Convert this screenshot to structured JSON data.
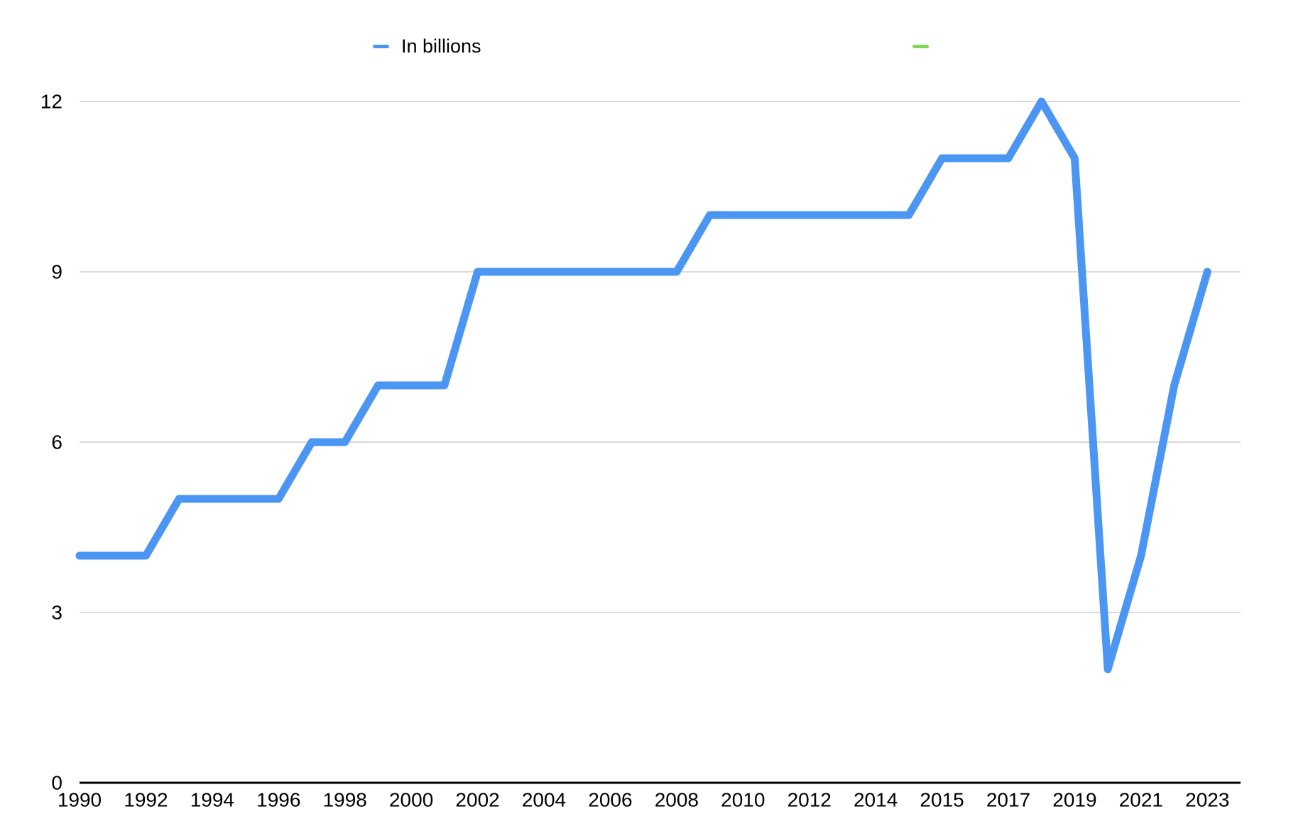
{
  "chart": {
    "background_color": "#ffffff",
    "axis_color": "#000000",
    "gridline_color": "#cdcdcd",
    "tick_label_color": "#000000",
    "legend": {
      "series1": {
        "label": "In billions",
        "color": "#4b96f3"
      },
      "series2": {
        "label": "",
        "color": "#7fd653"
      }
    },
    "chart_data": {
      "type": "line",
      "title": "",
      "xlabel": "",
      "ylabel": "",
      "grid": "horizontal",
      "legend_position": "top",
      "y_ticks": [
        0,
        3,
        6,
        9,
        12
      ],
      "ylim": [
        0,
        12.3
      ],
      "x_tick_labels": [
        "1990",
        "1992",
        "1994",
        "1996",
        "1998",
        "2000",
        "2002",
        "2004",
        "2006",
        "2008",
        "2010",
        "2012",
        "2014",
        "2015",
        "2017",
        "2019",
        "2021",
        "2023"
      ],
      "x_tick_slots": [
        0,
        2,
        4,
        6,
        8,
        10,
        12,
        14,
        16,
        18,
        20,
        22,
        24,
        26,
        28,
        30,
        32,
        34
      ],
      "total_slots": 36,
      "series": [
        {
          "name": "In billions",
          "color": "#4b96f3",
          "x": [
            "1990",
            "1991",
            "1992",
            "1993",
            "1994",
            "1995",
            "1996",
            "1997",
            "1998",
            "1999",
            "2000",
            "2001",
            "2002",
            "2003",
            "2004",
            "2005",
            "2006",
            "2007",
            "2008",
            "2009",
            "2010",
            "2011",
            "2012",
            "2013",
            "2014",
            "2014",
            "2015",
            "2016",
            "2017",
            "2018",
            "2019",
            "2020",
            "2021",
            "2022",
            "2023"
          ],
          "values": [
            4,
            4,
            4,
            5,
            5,
            5,
            5,
            6,
            6,
            7,
            7,
            7,
            9,
            9,
            9,
            9,
            9,
            9,
            9,
            10,
            10,
            10,
            10,
            10,
            10,
            10,
            11,
            11,
            11,
            12,
            11,
            2,
            4,
            7,
            9
          ]
        },
        {
          "name": "",
          "color": "#7fd653",
          "x": [],
          "values": []
        }
      ]
    }
  }
}
